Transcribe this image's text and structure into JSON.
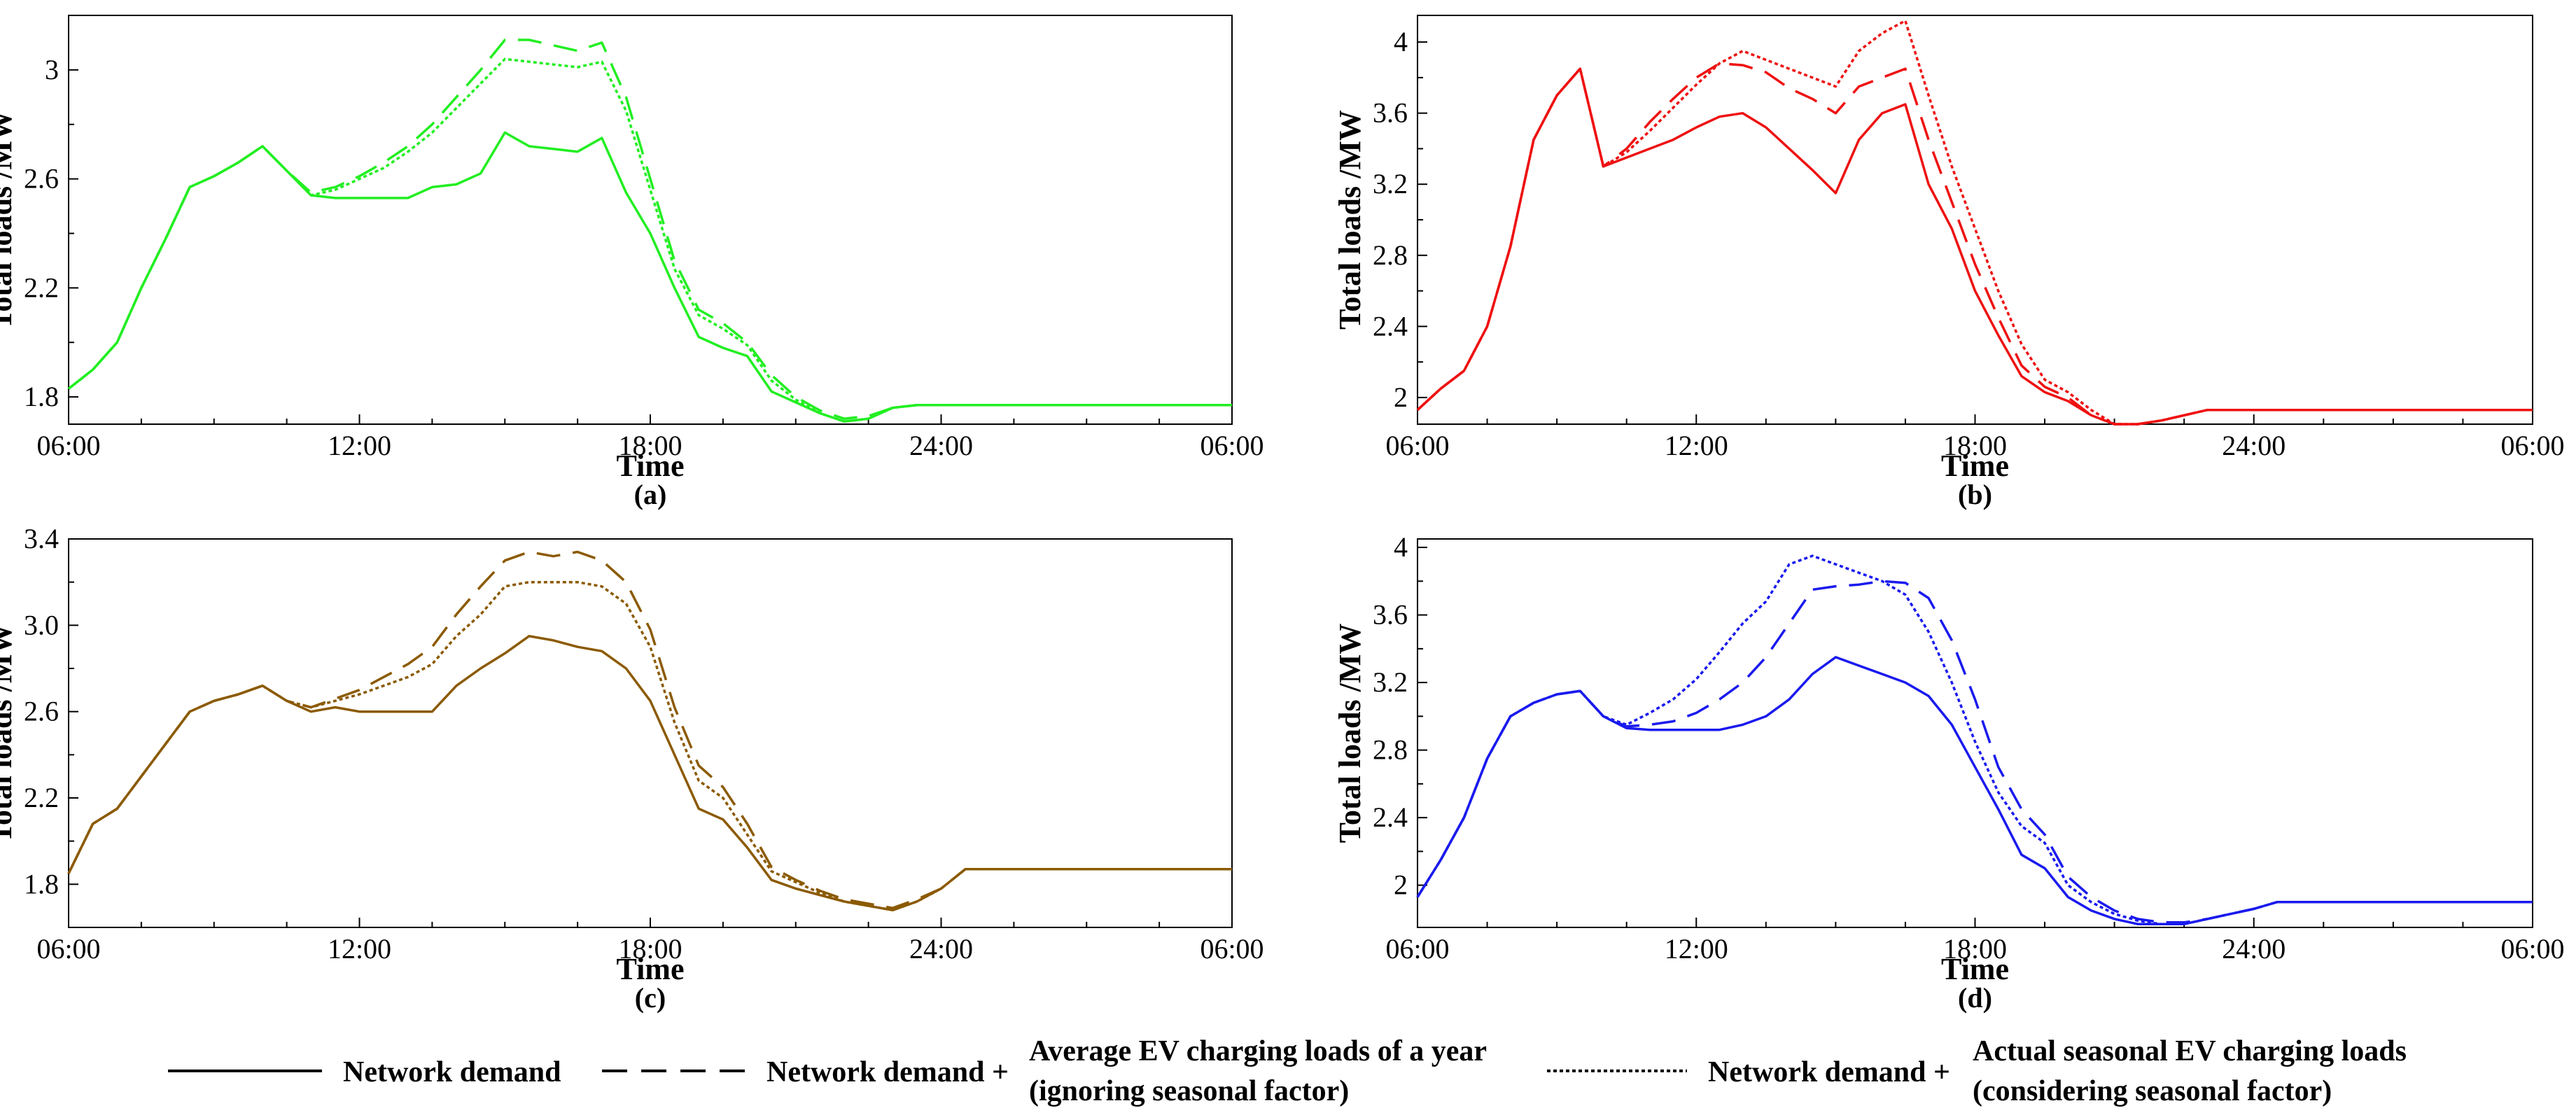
{
  "figure": {
    "legend": {
      "entries": [
        {
          "key": "demand",
          "parts": [
            "Network demand"
          ]
        },
        {
          "key": "average",
          "parts": [
            "Network demand +",
            "Average EV charging loads of a year",
            "(ignoring seasonal factor)"
          ]
        },
        {
          "key": "seasonal",
          "parts": [
            "Network demand +",
            "Actual seasonal EV charging loads",
            "(considering seasonal factor)"
          ]
        }
      ]
    }
  },
  "chart_data": [
    {
      "type": "line",
      "panel": "(a)",
      "color": "#22ee22",
      "xlabel": "Time",
      "ylabel": "Total loads /MW",
      "xticks": [
        "06:00",
        "12:00",
        "18:00",
        "24:00",
        "06:00"
      ],
      "xlim": [
        0,
        24
      ],
      "ylim": [
        1.7,
        3.2
      ],
      "yticks": [
        1.8,
        2.2,
        2.6,
        3
      ],
      "ytick_labels": [
        "1.8",
        "2.2",
        "2.6",
        "3"
      ],
      "x": [
        0,
        0.5,
        1,
        1.5,
        2,
        2.5,
        3,
        3.5,
        4,
        4.5,
        5,
        5.5,
        6,
        6.5,
        7,
        7.5,
        8,
        8.5,
        9,
        9.5,
        10,
        10.5,
        11,
        11.5,
        12,
        12.5,
        13,
        13.5,
        14,
        14.5,
        15,
        15.5,
        16,
        16.5,
        17,
        17.5,
        18,
        18.5,
        19,
        19.5,
        20,
        20.5,
        21,
        21.5,
        22,
        22.5,
        23,
        23.5,
        24
      ],
      "series": [
        {
          "name": "Network demand",
          "style": "solid",
          "values": [
            1.83,
            1.9,
            2.0,
            2.2,
            2.38,
            2.57,
            2.61,
            2.66,
            2.72,
            2.63,
            2.54,
            2.53,
            2.53,
            2.53,
            2.53,
            2.57,
            2.58,
            2.62,
            2.77,
            2.72,
            2.71,
            2.7,
            2.75,
            2.55,
            2.4,
            2.2,
            2.02,
            1.98,
            1.95,
            1.82,
            1.78,
            1.74,
            1.71,
            1.72,
            1.76,
            1.77,
            1.77,
            1.77,
            1.77,
            1.77,
            1.77,
            1.77,
            1.77,
            1.77,
            1.77,
            1.77,
            1.77,
            1.77,
            1.77
          ]
        },
        {
          "name": "Average EV charging loads of a year",
          "style": "dashed",
          "values": [
            1.83,
            1.9,
            2.0,
            2.2,
            2.38,
            2.57,
            2.61,
            2.66,
            2.72,
            2.63,
            2.55,
            2.57,
            2.61,
            2.66,
            2.72,
            2.8,
            2.9,
            3.0,
            3.11,
            3.11,
            3.09,
            3.07,
            3.1,
            2.9,
            2.6,
            2.3,
            2.12,
            2.07,
            2.0,
            1.88,
            1.8,
            1.75,
            1.72,
            1.73,
            1.76,
            1.77,
            1.77,
            1.77,
            1.77,
            1.77,
            1.77,
            1.77,
            1.77,
            1.77,
            1.77,
            1.77,
            1.77,
            1.77,
            1.77
          ]
        },
        {
          "name": "Actual seasonal EV charging loads",
          "style": "dotted",
          "values": [
            1.83,
            1.9,
            2.0,
            2.2,
            2.38,
            2.57,
            2.61,
            2.66,
            2.72,
            2.63,
            2.54,
            2.56,
            2.6,
            2.64,
            2.7,
            2.77,
            2.86,
            2.95,
            3.04,
            3.03,
            3.02,
            3.01,
            3.03,
            2.85,
            2.56,
            2.27,
            2.1,
            2.05,
            1.99,
            1.86,
            1.79,
            1.74,
            1.71,
            1.72,
            1.76,
            1.77,
            1.77,
            1.77,
            1.77,
            1.77,
            1.77,
            1.77,
            1.77,
            1.77,
            1.77,
            1.77,
            1.77,
            1.77,
            1.77
          ]
        }
      ]
    },
    {
      "type": "line",
      "panel": "(b)",
      "color": "#ee1111",
      "xlabel": "Time",
      "ylabel": "Total loads /MW",
      "xticks": [
        "06:00",
        "12:00",
        "18:00",
        "24:00",
        "06:00"
      ],
      "xlim": [
        0,
        24
      ],
      "ylim": [
        1.85,
        4.15
      ],
      "yticks": [
        2,
        2.4,
        2.8,
        3.2,
        3.6,
        4
      ],
      "ytick_labels": [
        "2",
        "2.4",
        "2.8",
        "3.2",
        "3.6",
        "4"
      ],
      "x": [
        0,
        0.5,
        1,
        1.5,
        2,
        2.5,
        3,
        3.5,
        4,
        4.5,
        5,
        5.5,
        6,
        6.5,
        7,
        7.5,
        8,
        8.5,
        9,
        9.5,
        10,
        10.5,
        11,
        11.5,
        12,
        12.5,
        13,
        13.5,
        14,
        14.5,
        15,
        15.5,
        16,
        16.5,
        17,
        17.5,
        18,
        18.5,
        19,
        19.5,
        20,
        20.5,
        21,
        21.5,
        22,
        22.5,
        23,
        23.5,
        24
      ],
      "series": [
        {
          "name": "Network demand",
          "style": "solid",
          "values": [
            1.93,
            2.05,
            2.15,
            2.4,
            2.85,
            3.45,
            3.7,
            3.85,
            3.3,
            3.35,
            3.4,
            3.45,
            3.52,
            3.58,
            3.6,
            3.52,
            3.4,
            3.28,
            3.15,
            3.45,
            3.6,
            3.65,
            3.2,
            2.95,
            2.6,
            2.35,
            2.12,
            2.03,
            1.98,
            1.9,
            1.85,
            1.85,
            1.87,
            1.9,
            1.93,
            1.93,
            1.93,
            1.93,
            1.93,
            1.93,
            1.93,
            1.93,
            1.93,
            1.93,
            1.93,
            1.93,
            1.93,
            1.93,
            1.93
          ]
        },
        {
          "name": "Average EV charging loads of a year",
          "style": "dashed",
          "values": [
            1.93,
            2.05,
            2.15,
            2.4,
            2.85,
            3.45,
            3.7,
            3.85,
            3.3,
            3.4,
            3.55,
            3.68,
            3.8,
            3.88,
            3.87,
            3.83,
            3.74,
            3.68,
            3.6,
            3.75,
            3.8,
            3.85,
            3.45,
            3.1,
            2.75,
            2.45,
            2.18,
            2.06,
            2.0,
            1.9,
            1.85,
            1.85,
            1.87,
            1.9,
            1.93,
            1.93,
            1.93,
            1.93,
            1.93,
            1.93,
            1.93,
            1.93,
            1.93,
            1.93,
            1.93,
            1.93,
            1.93,
            1.93,
            1.93
          ]
        },
        {
          "name": "Actual seasonal EV charging loads",
          "style": "dotted",
          "values": [
            1.93,
            2.05,
            2.15,
            2.4,
            2.85,
            3.45,
            3.7,
            3.85,
            3.3,
            3.38,
            3.5,
            3.63,
            3.76,
            3.88,
            3.95,
            3.9,
            3.85,
            3.8,
            3.75,
            3.95,
            4.05,
            4.12,
            3.7,
            3.3,
            2.95,
            2.6,
            2.3,
            2.1,
            2.03,
            1.93,
            1.85,
            1.85,
            1.87,
            1.9,
            1.93,
            1.93,
            1.93,
            1.93,
            1.93,
            1.93,
            1.93,
            1.93,
            1.93,
            1.93,
            1.93,
            1.93,
            1.93,
            1.93,
            1.93
          ]
        }
      ]
    },
    {
      "type": "line",
      "panel": "(c)",
      "color": "#8B5A00",
      "xlabel": "Time",
      "ylabel": "Total loads /MW",
      "xticks": [
        "06:00",
        "12:00",
        "18:00",
        "24:00",
        "06:00"
      ],
      "xlim": [
        0,
        24
      ],
      "ylim": [
        1.6,
        3.4
      ],
      "yticks": [
        1.8,
        2.2,
        2.6,
        3.0,
        3.4
      ],
      "ytick_labels": [
        "1.8",
        "2.2",
        "2.6",
        "3.0",
        "3.4"
      ],
      "x": [
        0,
        0.5,
        1,
        1.5,
        2,
        2.5,
        3,
        3.5,
        4,
        4.5,
        5,
        5.5,
        6,
        6.5,
        7,
        7.5,
        8,
        8.5,
        9,
        9.5,
        10,
        10.5,
        11,
        11.5,
        12,
        12.5,
        13,
        13.5,
        14,
        14.5,
        15,
        15.5,
        16,
        16.5,
        17,
        17.5,
        18,
        18.5,
        19,
        19.5,
        20,
        20.5,
        21,
        21.5,
        22,
        22.5,
        23,
        23.5,
        24
      ],
      "series": [
        {
          "name": "Network demand",
          "style": "solid",
          "values": [
            1.85,
            2.08,
            2.15,
            2.3,
            2.45,
            2.6,
            2.65,
            2.68,
            2.72,
            2.65,
            2.6,
            2.62,
            2.6,
            2.6,
            2.6,
            2.6,
            2.72,
            2.8,
            2.87,
            2.95,
            2.93,
            2.9,
            2.88,
            2.8,
            2.65,
            2.4,
            2.15,
            2.1,
            1.97,
            1.82,
            1.78,
            1.75,
            1.72,
            1.7,
            1.68,
            1.72,
            1.78,
            1.87,
            1.87,
            1.87,
            1.87,
            1.87,
            1.87,
            1.87,
            1.87,
            1.87,
            1.87,
            1.87,
            1.87
          ]
        },
        {
          "name": "Average EV charging loads of a year",
          "style": "dashed",
          "values": [
            1.85,
            2.08,
            2.15,
            2.3,
            2.45,
            2.6,
            2.65,
            2.68,
            2.72,
            2.65,
            2.62,
            2.66,
            2.7,
            2.76,
            2.82,
            2.9,
            3.05,
            3.18,
            3.3,
            3.34,
            3.32,
            3.34,
            3.3,
            3.2,
            2.98,
            2.62,
            2.35,
            2.25,
            2.08,
            1.88,
            1.82,
            1.77,
            1.73,
            1.71,
            1.69,
            1.73,
            1.78,
            1.87,
            1.87,
            1.87,
            1.87,
            1.87,
            1.87,
            1.87,
            1.87,
            1.87,
            1.87,
            1.87,
            1.87
          ]
        },
        {
          "name": "Actual seasonal EV charging loads",
          "style": "dotted",
          "values": [
            1.85,
            2.08,
            2.15,
            2.3,
            2.45,
            2.6,
            2.65,
            2.68,
            2.72,
            2.65,
            2.62,
            2.65,
            2.68,
            2.72,
            2.76,
            2.82,
            2.95,
            3.05,
            3.18,
            3.2,
            3.2,
            3.2,
            3.18,
            3.1,
            2.9,
            2.55,
            2.28,
            2.2,
            2.03,
            1.86,
            1.81,
            1.76,
            1.72,
            1.7,
            1.68,
            1.72,
            1.78,
            1.87,
            1.87,
            1.87,
            1.87,
            1.87,
            1.87,
            1.87,
            1.87,
            1.87,
            1.87,
            1.87,
            1.87
          ]
        }
      ]
    },
    {
      "type": "line",
      "panel": "(d)",
      "color": "#1a1aee",
      "xlabel": "Time",
      "ylabel": "Total loads /MW",
      "xticks": [
        "06:00",
        "12:00",
        "18:00",
        "24:00",
        "06:00"
      ],
      "xlim": [
        0,
        24
      ],
      "ylim": [
        1.75,
        4.05
      ],
      "yticks": [
        2,
        2.4,
        2.8,
        3.2,
        3.6,
        4
      ],
      "ytick_labels": [
        "2",
        "2.4",
        "2.8",
        "3.2",
        "3.6",
        "4"
      ],
      "x": [
        0,
        0.5,
        1,
        1.5,
        2,
        2.5,
        3,
        3.5,
        4,
        4.5,
        5,
        5.5,
        6,
        6.5,
        7,
        7.5,
        8,
        8.5,
        9,
        9.5,
        10,
        10.5,
        11,
        11.5,
        12,
        12.5,
        13,
        13.5,
        14,
        14.5,
        15,
        15.5,
        16,
        16.5,
        17,
        17.5,
        18,
        18.5,
        19,
        19.5,
        20,
        20.5,
        21,
        21.5,
        22,
        22.5,
        23,
        23.5,
        24
      ],
      "series": [
        {
          "name": "Network demand",
          "style": "solid",
          "values": [
            1.93,
            2.15,
            2.4,
            2.75,
            3.0,
            3.08,
            3.13,
            3.15,
            3.0,
            2.93,
            2.92,
            2.92,
            2.92,
            2.92,
            2.95,
            3.0,
            3.1,
            3.25,
            3.35,
            3.3,
            3.25,
            3.2,
            3.12,
            2.95,
            2.7,
            2.45,
            2.18,
            2.1,
            1.93,
            1.85,
            1.8,
            1.77,
            1.77,
            1.77,
            1.8,
            1.83,
            1.86,
            1.9,
            1.9,
            1.9,
            1.9,
            1.9,
            1.9,
            1.9,
            1.9,
            1.9,
            1.9,
            1.9,
            1.9
          ]
        },
        {
          "name": "Average EV charging loads of a year",
          "style": "dashed",
          "values": [
            1.93,
            2.15,
            2.4,
            2.75,
            3.0,
            3.08,
            3.13,
            3.15,
            3.0,
            2.94,
            2.95,
            2.97,
            3.02,
            3.1,
            3.2,
            3.35,
            3.55,
            3.75,
            3.77,
            3.78,
            3.8,
            3.79,
            3.7,
            3.45,
            3.1,
            2.7,
            2.45,
            2.3,
            2.05,
            1.93,
            1.85,
            1.8,
            1.78,
            1.78,
            1.8,
            1.83,
            1.86,
            1.9,
            1.9,
            1.9,
            1.9,
            1.9,
            1.9,
            1.9,
            1.9,
            1.9,
            1.9,
            1.9,
            1.9
          ]
        },
        {
          "name": "Actual seasonal EV charging loads",
          "style": "dotted",
          "values": [
            1.93,
            2.15,
            2.4,
            2.75,
            3.0,
            3.08,
            3.13,
            3.15,
            3.0,
            2.95,
            3.02,
            3.1,
            3.22,
            3.38,
            3.55,
            3.68,
            3.9,
            3.95,
            3.9,
            3.85,
            3.8,
            3.72,
            3.5,
            3.2,
            2.85,
            2.55,
            2.35,
            2.25,
            2.0,
            1.9,
            1.83,
            1.79,
            1.77,
            1.77,
            1.8,
            1.83,
            1.86,
            1.9,
            1.9,
            1.9,
            1.9,
            1.9,
            1.9,
            1.9,
            1.9,
            1.9,
            1.9,
            1.9,
            1.9
          ]
        }
      ]
    }
  ]
}
